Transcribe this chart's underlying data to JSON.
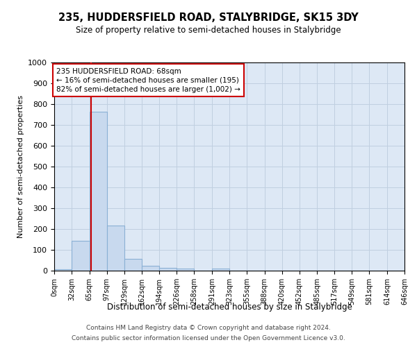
{
  "title": "235, HUDDERSFIELD ROAD, STALYBRIDGE, SK15 3DY",
  "subtitle": "Size of property relative to semi-detached houses in Stalybridge",
  "xlabel": "Distribution of semi-detached houses by size in Stalybridge",
  "ylabel": "Number of semi-detached properties",
  "bin_edges": [
    0,
    32,
    65,
    97,
    129,
    162,
    194,
    226,
    258,
    291,
    323,
    355,
    388,
    420,
    452,
    485,
    517,
    549,
    581,
    614,
    646
  ],
  "bar_heights": [
    8,
    145,
    762,
    217,
    56,
    23,
    14,
    11,
    0,
    11,
    0,
    0,
    0,
    0,
    0,
    0,
    0,
    0,
    0,
    0
  ],
  "bar_color": "#c8d9ee",
  "bar_edge_color": "#8ab0d4",
  "property_size": 68,
  "red_line_color": "#cc0000",
  "annotation_line1": "235 HUDDERSFIELD ROAD: 68sqm",
  "annotation_line2": "← 16% of semi-detached houses are smaller (195)",
  "annotation_line3": "82% of semi-detached houses are larger (1,002) →",
  "ylim": [
    0,
    1000
  ],
  "yticks": [
    0,
    100,
    200,
    300,
    400,
    500,
    600,
    700,
    800,
    900,
    1000
  ],
  "tick_labels": [
    "0sqm",
    "32sqm",
    "65sqm",
    "97sqm",
    "129sqm",
    "162sqm",
    "194sqm",
    "226sqm",
    "258sqm",
    "291sqm",
    "323sqm",
    "355sqm",
    "388sqm",
    "420sqm",
    "452sqm",
    "485sqm",
    "517sqm",
    "549sqm",
    "581sqm",
    "614sqm",
    "646sqm"
  ],
  "footer_line1": "Contains HM Land Registry data © Crown copyright and database right 2024.",
  "footer_line2": "Contains public sector information licensed under the Open Government Licence v3.0.",
  "background_color": "#ffffff",
  "axes_bg_color": "#dde8f5",
  "grid_color": "#c0cfe0"
}
